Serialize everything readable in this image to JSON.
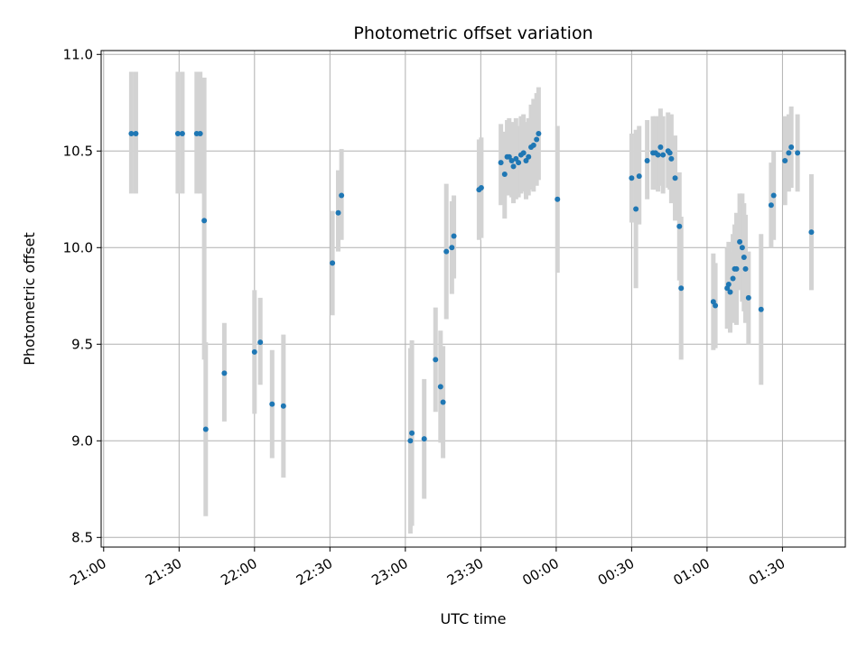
{
  "chart_data": {
    "type": "scatter",
    "title": "Photometric offset variation",
    "xlabel": "UTC time",
    "ylabel": "Photometric offset",
    "x_axis": "time (minutes after 21:00 UTC)",
    "xlim": [
      -1,
      295
    ],
    "ylim": [
      8.45,
      11.02
    ],
    "xticks": [
      {
        "x": 0,
        "label": "21:00"
      },
      {
        "x": 30,
        "label": "21:30"
      },
      {
        "x": 60,
        "label": "22:00"
      },
      {
        "x": 90,
        "label": "22:30"
      },
      {
        "x": 120,
        "label": "23:00"
      },
      {
        "x": 150,
        "label": "23:30"
      },
      {
        "x": 180,
        "label": "00:00"
      },
      {
        "x": 210,
        "label": "00:30"
      },
      {
        "x": 240,
        "label": "01:00"
      },
      {
        "x": 270,
        "label": "01:30"
      }
    ],
    "yticks": [
      {
        "y": 8.5,
        "label": "8.5"
      },
      {
        "y": 9.0,
        "label": "9.0"
      },
      {
        "y": 9.5,
        "label": "9.5"
      },
      {
        "y": 10.0,
        "label": "10.0"
      },
      {
        "y": 10.5,
        "label": "10.5"
      },
      {
        "y": 11.0,
        "label": "11.0"
      }
    ],
    "grid": true,
    "marker_color": "#1f77b4",
    "errorbar_color": "#d3d3d3",
    "points": [
      [
        11.0,
        10.59,
        10.28,
        10.91
      ],
      [
        12.8,
        10.59,
        10.28,
        10.91
      ],
      [
        29.5,
        10.59,
        10.28,
        10.91
      ],
      [
        31.3,
        10.59,
        10.28,
        10.91
      ],
      [
        37.0,
        10.59,
        10.28,
        10.91
      ],
      [
        38.4,
        10.59,
        10.28,
        10.91
      ],
      [
        40.0,
        10.14,
        9.42,
        10.88
      ],
      [
        40.6,
        9.06,
        8.61,
        9.51
      ],
      [
        48.0,
        9.35,
        9.1,
        9.61
      ],
      [
        60.0,
        9.46,
        9.14,
        9.78
      ],
      [
        62.3,
        9.51,
        9.29,
        9.74
      ],
      [
        67.0,
        9.19,
        8.91,
        9.47
      ],
      [
        71.5,
        9.18,
        8.81,
        9.55
      ],
      [
        91.0,
        9.92,
        9.65,
        10.19
      ],
      [
        93.3,
        10.18,
        9.98,
        10.4
      ],
      [
        94.6,
        10.27,
        10.04,
        10.51
      ],
      [
        122.0,
        9.0,
        8.52,
        9.48
      ],
      [
        122.6,
        9.04,
        8.56,
        9.52
      ],
      [
        127.5,
        9.01,
        8.7,
        9.32
      ],
      [
        132.0,
        9.42,
        9.15,
        9.69
      ],
      [
        134.0,
        9.28,
        8.99,
        9.57
      ],
      [
        135.0,
        9.2,
        8.91,
        9.49
      ],
      [
        136.3,
        9.98,
        9.63,
        10.33
      ],
      [
        138.5,
        10.0,
        9.76,
        10.24
      ],
      [
        139.3,
        10.06,
        9.84,
        10.27
      ],
      [
        149.3,
        10.3,
        10.04,
        10.56
      ],
      [
        150.2,
        10.31,
        10.05,
        10.57
      ],
      [
        158.0,
        10.44,
        10.22,
        10.64
      ],
      [
        159.5,
        10.38,
        10.15,
        10.6
      ],
      [
        160.5,
        10.47,
        10.27,
        10.66
      ],
      [
        161.3,
        10.47,
        10.27,
        10.67
      ],
      [
        162.3,
        10.45,
        10.26,
        10.65
      ],
      [
        163.0,
        10.42,
        10.23,
        10.61
      ],
      [
        164.0,
        10.46,
        10.25,
        10.67
      ],
      [
        165.0,
        10.44,
        10.26,
        10.63
      ],
      [
        166.0,
        10.48,
        10.28,
        10.68
      ],
      [
        167.0,
        10.49,
        10.29,
        10.69
      ],
      [
        168.0,
        10.45,
        10.25,
        10.65
      ],
      [
        169.0,
        10.47,
        10.27,
        10.67
      ],
      [
        170.0,
        10.52,
        10.3,
        10.74
      ],
      [
        171.0,
        10.53,
        10.29,
        10.77
      ],
      [
        172.2,
        10.56,
        10.32,
        10.8
      ],
      [
        173.0,
        10.59,
        10.35,
        10.83
      ],
      [
        180.5,
        10.25,
        9.87,
        10.63
      ],
      [
        210.0,
        10.36,
        10.13,
        10.59
      ],
      [
        211.7,
        10.2,
        9.79,
        10.61
      ],
      [
        213.0,
        10.37,
        10.12,
        10.63
      ],
      [
        216.2,
        10.45,
        10.25,
        10.66
      ],
      [
        218.5,
        10.49,
        10.3,
        10.68
      ],
      [
        219.5,
        10.49,
        10.3,
        10.68
      ],
      [
        220.5,
        10.48,
        10.29,
        10.68
      ],
      [
        221.5,
        10.52,
        10.32,
        10.72
      ],
      [
        222.5,
        10.48,
        10.28,
        10.68
      ],
      [
        224.5,
        10.5,
        10.31,
        10.7
      ],
      [
        225.2,
        10.49,
        10.3,
        10.68
      ],
      [
        225.8,
        10.46,
        10.23,
        10.69
      ],
      [
        227.3,
        10.36,
        10.14,
        10.58
      ],
      [
        229.0,
        10.11,
        9.83,
        10.39
      ],
      [
        229.7,
        9.79,
        9.42,
        10.16
      ],
      [
        242.5,
        9.72,
        9.47,
        9.97
      ],
      [
        243.3,
        9.7,
        9.48,
        9.92
      ],
      [
        248.0,
        9.79,
        9.58,
        10.0
      ],
      [
        248.6,
        9.81,
        9.59,
        10.03
      ],
      [
        249.2,
        9.77,
        9.56,
        9.98
      ],
      [
        250.3,
        9.84,
        9.61,
        10.07
      ],
      [
        251.0,
        9.89,
        9.66,
        10.12
      ],
      [
        251.7,
        9.89,
        9.6,
        10.18
      ],
      [
        253.0,
        10.03,
        9.78,
        10.28
      ],
      [
        254.0,
        10.0,
        9.72,
        10.28
      ],
      [
        254.7,
        9.95,
        9.67,
        10.23
      ],
      [
        255.3,
        9.89,
        9.61,
        10.17
      ],
      [
        256.5,
        9.74,
        9.5,
        9.98
      ],
      [
        261.5,
        9.68,
        9.29,
        10.07
      ],
      [
        265.5,
        10.22,
        10.0,
        10.44
      ],
      [
        266.5,
        10.27,
        10.04,
        10.5
      ],
      [
        271.0,
        10.45,
        10.22,
        10.68
      ],
      [
        272.5,
        10.49,
        10.29,
        10.69
      ],
      [
        273.5,
        10.52,
        10.31,
        10.73
      ],
      [
        276.0,
        10.49,
        10.29,
        10.69
      ],
      [
        281.5,
        10.08,
        9.78,
        10.38
      ]
    ]
  }
}
